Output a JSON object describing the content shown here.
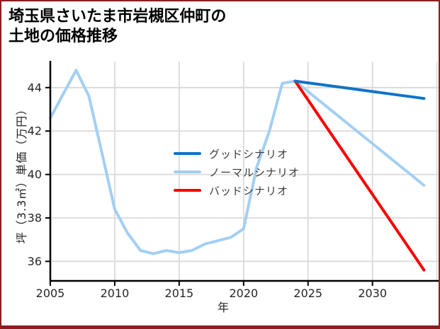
{
  "frame": {
    "border_color": "#8a1f1f"
  },
  "title": {
    "line1": "埼玉県さいたま市岩槻区仲町の",
    "line2": "土地の価格推移"
  },
  "chart_data": {
    "type": "line",
    "title": "埼玉県さいたま市岩槻区仲町の土地の価格推移",
    "xlabel": "年",
    "ylabel": "坪（3.3㎡）単価（万円）",
    "xlim": [
      2005,
      2035.35
    ],
    "ylim": [
      35.1,
      45.2
    ],
    "xticks": [
      2005,
      2010,
      2015,
      2020,
      2025,
      2030
    ],
    "yticks": [
      36,
      38,
      40,
      42,
      44
    ],
    "x_gridlines": [
      2010,
      2015,
      2020,
      2025,
      2030,
      2035
    ],
    "grid": true,
    "grid_color": "#d9d9d9",
    "axis_color": "#000000",
    "legend_position": "center",
    "series": [
      {
        "id": "normal",
        "name": "ノーマルシナリオ",
        "color": "#a3cff2",
        "width": 4,
        "x": [
          2005,
          2006,
          2007,
          2008,
          2009,
          2010,
          2011,
          2012,
          2013,
          2014,
          2015,
          2016,
          2017,
          2018,
          2019,
          2020,
          2021,
          2022,
          2023,
          2024,
          2025,
          2026,
          2027,
          2028,
          2029,
          2030,
          2031,
          2032,
          2033,
          2034
        ],
        "values": [
          42.6,
          43.7,
          44.8,
          43.6,
          41.0,
          38.4,
          37.3,
          36.5,
          36.35,
          36.5,
          36.4,
          36.5,
          36.8,
          36.95,
          37.1,
          37.5,
          40.3,
          42.0,
          44.2,
          44.3,
          43.82,
          43.34,
          42.86,
          42.38,
          41.9,
          41.42,
          40.94,
          40.46,
          39.98,
          39.5
        ]
      },
      {
        "id": "bad",
        "name": "バッドシナリオ",
        "color": "#f80000",
        "width": 4,
        "x": [
          2024,
          2025,
          2026,
          2027,
          2028,
          2029,
          2030,
          2031,
          2032,
          2033,
          2034
        ],
        "values": [
          44.3,
          43.43,
          42.56,
          41.69,
          40.82,
          39.95,
          39.08,
          38.21,
          37.34,
          36.47,
          35.6
        ]
      },
      {
        "id": "good",
        "name": "グッドシナリオ",
        "color": "#0e73c8",
        "width": 4,
        "x": [
          2024,
          2025,
          2026,
          2027,
          2028,
          2029,
          2030,
          2031,
          2032,
          2033,
          2034
        ],
        "values": [
          44.3,
          44.22,
          44.14,
          44.06,
          43.98,
          43.9,
          43.82,
          43.74,
          43.66,
          43.58,
          43.5
        ]
      }
    ]
  }
}
